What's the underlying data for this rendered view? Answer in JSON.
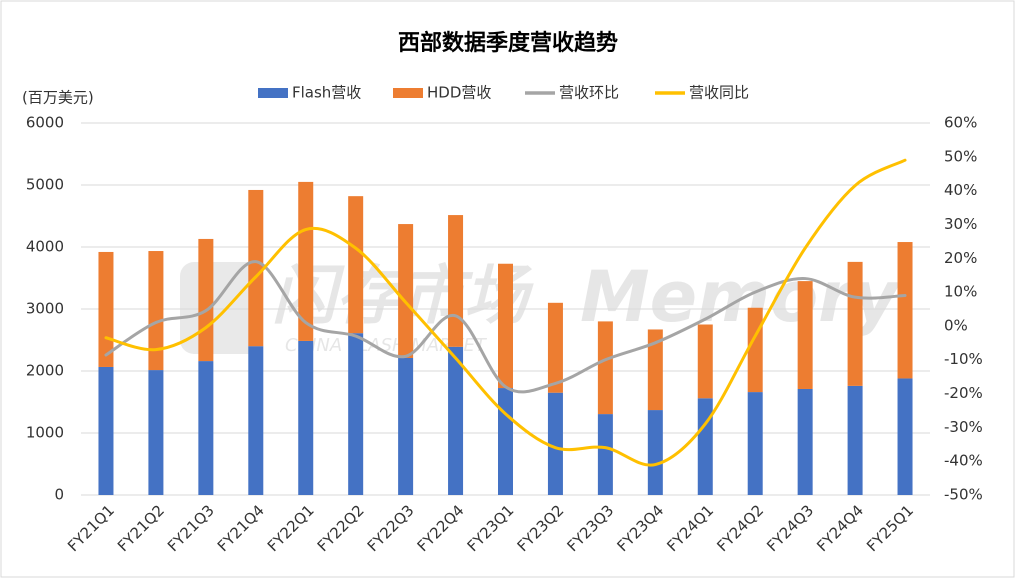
{
  "chart_data": {
    "type": "bar",
    "stacked": true,
    "title": "西部数据季度营收趋势",
    "y_label": "(百万美元)",
    "watermark": [
      "闪存市场",
      "Memory",
      "CHINA FLASH MARKET"
    ],
    "categories": [
      "FY21Q1",
      "FY21Q2",
      "FY21Q3",
      "FY21Q4",
      "FY22Q1",
      "FY22Q2",
      "FY22Q3",
      "FY22Q4",
      "FY23Q1",
      "FY23Q2",
      "FY23Q3",
      "FY23Q4",
      "FY24Q1",
      "FY24Q2",
      "FY24Q3",
      "FY24Q4",
      "FY25Q1"
    ],
    "series": [
      {
        "name": "Flash营收",
        "type": "bar",
        "color": "#4472c4",
        "values": [
          2065,
          2015,
          2160,
          2400,
          2485,
          2610,
          2210,
          2390,
          1725,
          1650,
          1305,
          1370,
          1560,
          1660,
          1710,
          1760,
          1880
        ]
      },
      {
        "name": "HDD营收",
        "type": "bar",
        "color": "#ed7d31",
        "values": [
          1855,
          1920,
          1970,
          2520,
          2565,
          2210,
          2160,
          2125,
          2005,
          1450,
          1495,
          1300,
          1190,
          1360,
          1740,
          2000,
          2200
        ]
      },
      {
        "name": "营收环比",
        "type": "line",
        "axis": "y2",
        "color": "#a5a5a5",
        "values": [
          -8.6,
          1,
          4.5,
          19,
          1,
          -3,
          -9,
          3,
          -18,
          -17,
          -10,
          -5,
          2,
          10,
          14,
          8.5,
          9
        ]
      },
      {
        "name": "营收同比",
        "type": "line",
        "axis": "y2",
        "color": "#ffc000",
        "values": [
          -3.5,
          -7,
          -0.5,
          14.5,
          28.5,
          23,
          7,
          -9.5,
          -26,
          -36,
          -36,
          -41,
          -29,
          -3,
          23,
          41.5,
          49
        ]
      }
    ],
    "ylim": [
      0,
      6000
    ],
    "yticks": [
      0,
      1000,
      2000,
      3000,
      4000,
      5000,
      6000
    ],
    "y2lim": [
      -50,
      60
    ],
    "y2ticks": [
      {
        "value": -50,
        "label": "-50%"
      },
      {
        "value": -40,
        "label": "-40%"
      },
      {
        "value": -30,
        "label": "-30%"
      },
      {
        "value": -20,
        "label": "-20%"
      },
      {
        "value": -10,
        "label": "-10%"
      },
      {
        "value": 0,
        "label": "0%"
      },
      {
        "value": 10,
        "label": "10%"
      },
      {
        "value": 20,
        "label": "20%"
      },
      {
        "value": 30,
        "label": "30%"
      },
      {
        "value": 40,
        "label": "40%"
      },
      {
        "value": 50,
        "label": "50%"
      },
      {
        "value": 60,
        "label": "60%"
      }
    ],
    "grid": true,
    "legend": "top"
  }
}
